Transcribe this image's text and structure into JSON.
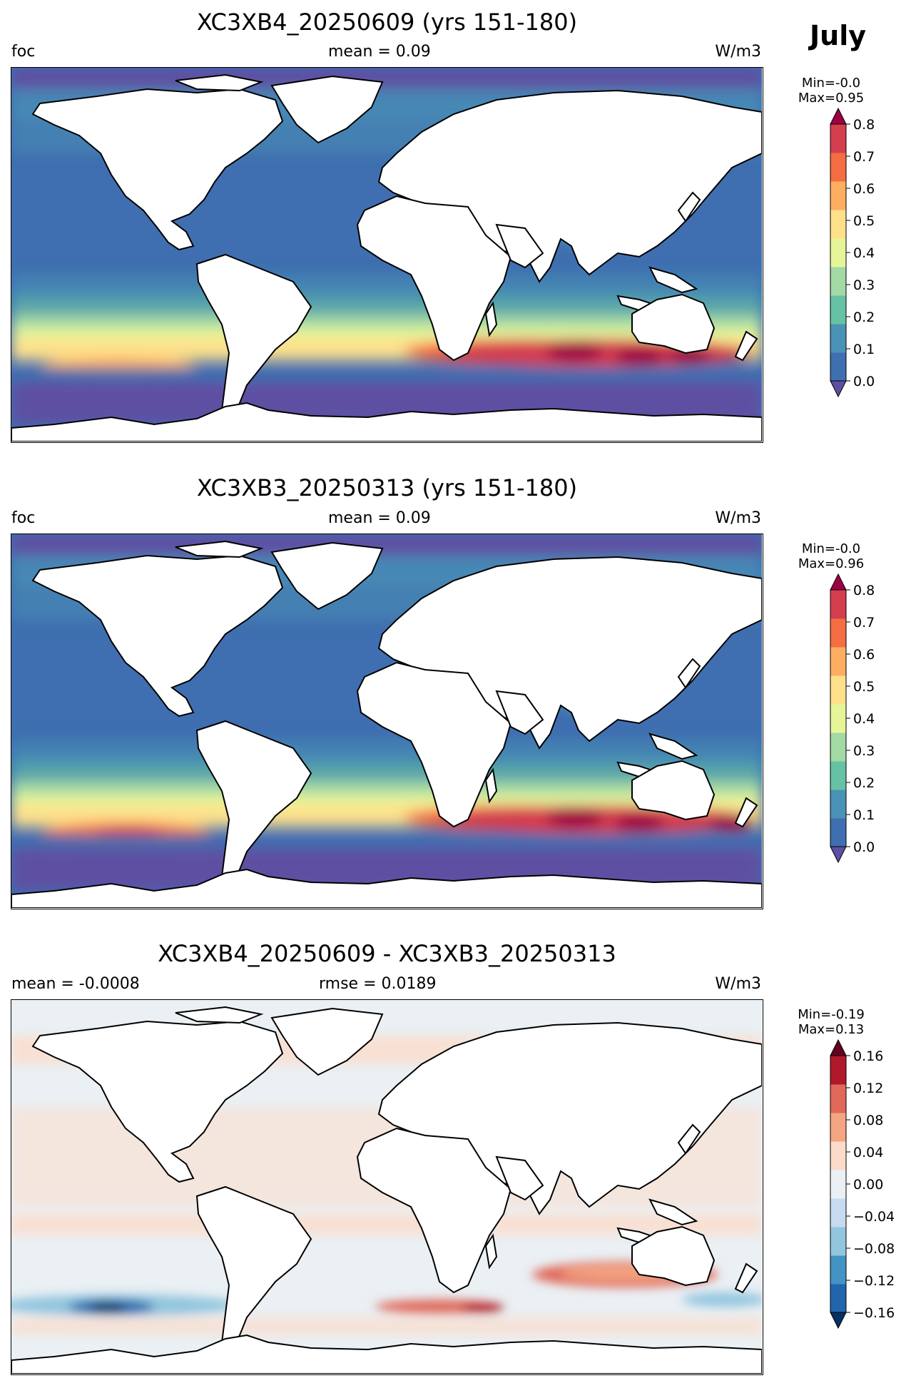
{
  "month": "July",
  "panels": [
    {
      "title": "XC3XB4_20250609 (yrs 151-180)",
      "left_label": "foc",
      "center_label": "mean = 0.09",
      "right_label": "W/m3",
      "minmax": "Min=-0.0\nMax=0.95",
      "colorbar_ticks": [
        "0.8",
        "0.7",
        "0.6",
        "0.5",
        "0.4",
        "0.3",
        "0.2",
        "0.1",
        "0.0"
      ]
    },
    {
      "title": "XC3XB3_20250313 (yrs 151-180)",
      "left_label": "foc",
      "center_label": "mean = 0.09",
      "right_label": "W/m3",
      "minmax": "Min=-0.0\nMax=0.96",
      "colorbar_ticks": [
        "0.8",
        "0.7",
        "0.6",
        "0.5",
        "0.4",
        "0.3",
        "0.2",
        "0.1",
        "0.0"
      ]
    },
    {
      "title": "XC3XB4_20250609 - XC3XB3_20250313",
      "left_label": "mean = -0.0008",
      "center_label": "rmse = 0.0189",
      "right_label": "W/m3",
      "minmax": "Min=-0.19\nMax=0.13",
      "colorbar_ticks": [
        "0.16",
        "0.12",
        "0.08",
        "0.04",
        "0.00",
        "−0.04",
        "−0.08",
        "−0.12",
        "−0.16"
      ]
    }
  ],
  "colors": {
    "seq": [
      "#5e4fa2",
      "#3f6fb0",
      "#4a92b6",
      "#66c2a5",
      "#a3d9a5",
      "#e6f598",
      "#fee08b",
      "#fdae61",
      "#f46d43",
      "#d53e4f",
      "#9e0142"
    ],
    "diff": [
      "#053061",
      "#2166ac",
      "#4393c3",
      "#92c5de",
      "#c6dbef",
      "#eaf0f4",
      "#fbdccb",
      "#f4a582",
      "#e0695a",
      "#b2182b",
      "#67001f"
    ]
  }
}
